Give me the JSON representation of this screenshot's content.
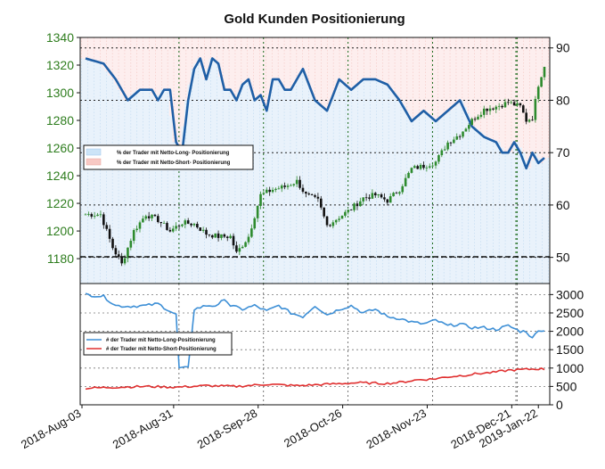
{
  "chart_data": [
    {
      "type": "candlestick+line",
      "title": "Gold Kunden Positionierung",
      "x_ticks": [
        "2018-Aug-03",
        "2018-Aug-31",
        "2018-Sep-28",
        "2018-Oct-26",
        "2018-Nov-23",
        "2018-Dec-21",
        "2019-Jan-22"
      ],
      "left_axis": {
        "ylim": [
          1162,
          1340
        ],
        "ticks": [
          "1340",
          "1320",
          "1300",
          "1280",
          "1260",
          "1240",
          "1220",
          "1200",
          "1180"
        ],
        "color": "#2e7d1e"
      },
      "right_axis": {
        "ylim": [
          45,
          92
        ],
        "ticks": [
          "90",
          "80",
          "70",
          "60",
          "50"
        ]
      },
      "legend": {
        "placement": "middle-left",
        "entries": [
          {
            "label": "% der Trader mit Netto-Long- Positionierung",
            "color": "#cce4f7"
          },
          {
            "label": "% der Trader mit Netto-Short- Positionierung",
            "color": "#f8c9c4"
          }
        ]
      },
      "price_keypoints": [
        [
          0,
          1212
        ],
        [
          5,
          1212
        ],
        [
          9,
          1188
        ],
        [
          12,
          1176
        ],
        [
          16,
          1200
        ],
        [
          20,
          1212
        ],
        [
          24,
          1208
        ],
        [
          28,
          1200
        ],
        [
          32,
          1206
        ],
        [
          36,
          1205
        ],
        [
          40,
          1198
        ],
        [
          44,
          1196
        ],
        [
          48,
          1196
        ],
        [
          50,
          1184
        ],
        [
          54,
          1196
        ],
        [
          58,
          1226
        ],
        [
          62,
          1230
        ],
        [
          66,
          1232
        ],
        [
          70,
          1236
        ],
        [
          73,
          1226
        ],
        [
          77,
          1222
        ],
        [
          80,
          1204
        ],
        [
          84,
          1210
        ],
        [
          88,
          1216
        ],
        [
          92,
          1224
        ],
        [
          96,
          1226
        ],
        [
          100,
          1222
        ],
        [
          104,
          1230
        ],
        [
          108,
          1245
        ],
        [
          112,
          1247
        ],
        [
          116,
          1250
        ],
        [
          120,
          1264
        ],
        [
          124,
          1270
        ],
        [
          128,
          1280
        ],
        [
          132,
          1288
        ],
        [
          136,
          1290
        ],
        [
          140,
          1293
        ],
        [
          144,
          1290
        ],
        [
          146,
          1280
        ],
        [
          148,
          1282
        ],
        [
          150,
          1306
        ],
        [
          152,
          1320
        ]
      ],
      "net_long_pct_keypoints": [
        [
          0,
          88
        ],
        [
          6,
          87
        ],
        [
          10,
          84
        ],
        [
          14,
          80
        ],
        [
          18,
          82
        ],
        [
          22,
          82
        ],
        [
          24,
          80
        ],
        [
          26,
          82
        ],
        [
          28,
          82
        ],
        [
          30,
          72
        ],
        [
          32,
          70
        ],
        [
          34,
          80
        ],
        [
          36,
          86
        ],
        [
          38,
          88
        ],
        [
          40,
          84
        ],
        [
          42,
          88
        ],
        [
          44,
          87
        ],
        [
          46,
          82
        ],
        [
          48,
          82
        ],
        [
          50,
          80
        ],
        [
          52,
          83
        ],
        [
          54,
          84
        ],
        [
          56,
          80
        ],
        [
          58,
          81
        ],
        [
          60,
          78
        ],
        [
          62,
          84
        ],
        [
          64,
          84
        ],
        [
          66,
          82
        ],
        [
          68,
          82
        ],
        [
          70,
          84
        ],
        [
          72,
          86
        ],
        [
          76,
          80
        ],
        [
          80,
          78
        ],
        [
          84,
          84
        ],
        [
          88,
          82
        ],
        [
          92,
          84
        ],
        [
          96,
          84
        ],
        [
          100,
          83
        ],
        [
          104,
          80
        ],
        [
          106,
          78
        ],
        [
          108,
          76
        ],
        [
          112,
          78
        ],
        [
          116,
          76
        ],
        [
          120,
          78
        ],
        [
          124,
          80
        ],
        [
          128,
          75
        ],
        [
          132,
          73
        ],
        [
          136,
          72
        ],
        [
          138,
          70
        ],
        [
          140,
          70
        ],
        [
          142,
          72
        ],
        [
          144,
          70
        ],
        [
          146,
          67
        ],
        [
          148,
          70
        ],
        [
          150,
          68
        ],
        [
          152,
          69
        ]
      ]
    },
    {
      "type": "line",
      "y_ticks": [
        "3000",
        "2500",
        "2000",
        "1500",
        "1000",
        "500",
        "0"
      ],
      "ylim": [
        0,
        3300
      ],
      "legend": {
        "placement": "middle-left",
        "entries": [
          {
            "label": "# der Trader mit Netto-Long-Positionierung",
            "color": "#3d8fd6"
          },
          {
            "label": "# der Trader mit Netto-Short-Positionierung",
            "color": "#e03030"
          }
        ]
      },
      "series": [
        {
          "label_ref": 0,
          "color": "#3d8fd6",
          "keypoints": [
            [
              0,
              3000
            ],
            [
              6,
              2950
            ],
            [
              10,
              2700
            ],
            [
              14,
              2680
            ],
            [
              20,
              2700
            ],
            [
              24,
              2750
            ],
            [
              30,
              2450
            ],
            [
              31,
              1000
            ],
            [
              34,
              1000
            ],
            [
              36,
              2600
            ],
            [
              40,
              2700
            ],
            [
              44,
              2700
            ],
            [
              46,
              2900
            ],
            [
              48,
              2700
            ],
            [
              52,
              2600
            ],
            [
              56,
              2700
            ],
            [
              60,
              2550
            ],
            [
              64,
              2700
            ],
            [
              68,
              2500
            ],
            [
              72,
              2400
            ],
            [
              76,
              2700
            ],
            [
              80,
              2450
            ],
            [
              84,
              2600
            ],
            [
              88,
              2700
            ],
            [
              92,
              2500
            ],
            [
              96,
              2600
            ],
            [
              100,
              2400
            ],
            [
              104,
              2350
            ],
            [
              108,
              2250
            ],
            [
              112,
              2200
            ],
            [
              116,
              2300
            ],
            [
              120,
              2150
            ],
            [
              124,
              2200
            ],
            [
              128,
              2100
            ],
            [
              132,
              2100
            ],
            [
              136,
              2050
            ],
            [
              140,
              2150
            ],
            [
              144,
              2000
            ],
            [
              146,
              2000
            ],
            [
              148,
              1800
            ],
            [
              150,
              2050
            ],
            [
              152,
              2000
            ]
          ]
        },
        {
          "label_ref": 1,
          "color": "#e03030",
          "keypoints": [
            [
              0,
              450
            ],
            [
              10,
              480
            ],
            [
              20,
              500
            ],
            [
              30,
              480
            ],
            [
              40,
              520
            ],
            [
              50,
              500
            ],
            [
              60,
              560
            ],
            [
              70,
              520
            ],
            [
              80,
              560
            ],
            [
              90,
              600
            ],
            [
              100,
              580
            ],
            [
              105,
              620
            ],
            [
              110,
              680
            ],
            [
              115,
              700
            ],
            [
              120,
              760
            ],
            [
              125,
              800
            ],
            [
              130,
              850
            ],
            [
              135,
              880
            ],
            [
              140,
              940
            ],
            [
              145,
              960
            ],
            [
              150,
              980
            ],
            [
              152,
              970
            ]
          ]
        }
      ]
    }
  ]
}
